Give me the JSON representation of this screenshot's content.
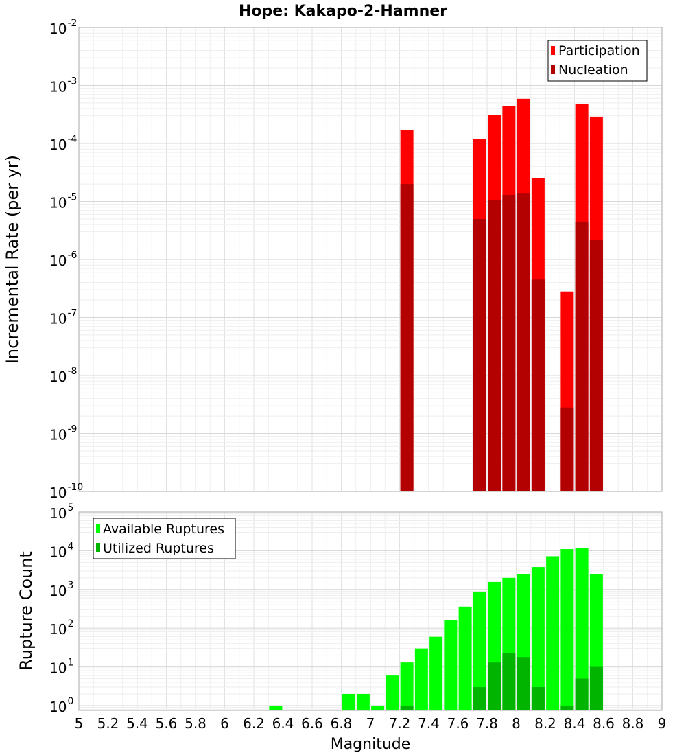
{
  "title": "Hope: Kakapo-2-Hamner",
  "chart_data": [
    {
      "type": "bar",
      "title": "Hope: Kakapo-2-Hamner",
      "ylabel": "Incremental Rate (per yr)",
      "xlabel": "",
      "yscale": "log",
      "ylim": [
        1e-10,
        0.01
      ],
      "xlim": [
        5,
        9
      ],
      "grid": true,
      "legend_position": "top-right",
      "ytick_exponents": [
        "-10",
        "-9",
        "-8",
        "-7",
        "-6",
        "-5",
        "-4",
        "-3",
        "-2"
      ],
      "x": [
        7.25,
        7.75,
        7.85,
        7.95,
        8.05,
        8.15,
        8.35,
        8.45,
        8.55
      ],
      "series": [
        {
          "name": "Participation",
          "color": "#ff0000",
          "values": [
            0.00017,
            0.00012,
            0.00031,
            0.00044,
            0.00059,
            2.5e-05,
            2.8e-07,
            0.00048,
            0.00029
          ]
        },
        {
          "name": "Nucleation",
          "color": "#b30000",
          "values": [
            2e-05,
            5e-06,
            1.05e-05,
            1.3e-05,
            1.4e-05,
            4.5e-07,
            2.8e-09,
            4.5e-06,
            2.2e-06
          ]
        }
      ]
    },
    {
      "type": "bar",
      "ylabel": "Rupture Count",
      "xlabel": "Magnitude",
      "yscale": "log",
      "ylim": [
        0.75,
        100000.0
      ],
      "xlim": [
        5,
        9
      ],
      "grid": true,
      "legend_position": "top-left",
      "ytick_exponents": [
        "0",
        "1",
        "2",
        "3",
        "4",
        "5"
      ],
      "xticks": [
        "5",
        "5.2",
        "5.4",
        "5.6",
        "5.8",
        "6",
        "6.2",
        "6.4",
        "6.6",
        "6.8",
        "7",
        "7.2",
        "7.4",
        "7.6",
        "7.8",
        "8",
        "8.2",
        "8.4",
        "8.6",
        "8.8",
        "9"
      ],
      "x": [
        6.35,
        6.85,
        6.95,
        7.05,
        7.15,
        7.25,
        7.35,
        7.45,
        7.55,
        7.65,
        7.75,
        7.85,
        7.95,
        8.05,
        8.15,
        8.25,
        8.35,
        8.45,
        8.55
      ],
      "series": [
        {
          "name": "Available Ruptures",
          "color": "#00ff00",
          "values": [
            1,
            2,
            2,
            1,
            6,
            13,
            30,
            60,
            160,
            360,
            880,
            1560,
            2000,
            2500,
            3800,
            7200,
            11000,
            11500,
            2500
          ]
        },
        {
          "name": "Utilized Ruptures",
          "color": "#00b400",
          "values": [
            0,
            0,
            0,
            0,
            0,
            1,
            0,
            0,
            0,
            0,
            3,
            13,
            23,
            18,
            3,
            0,
            1,
            5,
            10
          ]
        }
      ]
    }
  ]
}
